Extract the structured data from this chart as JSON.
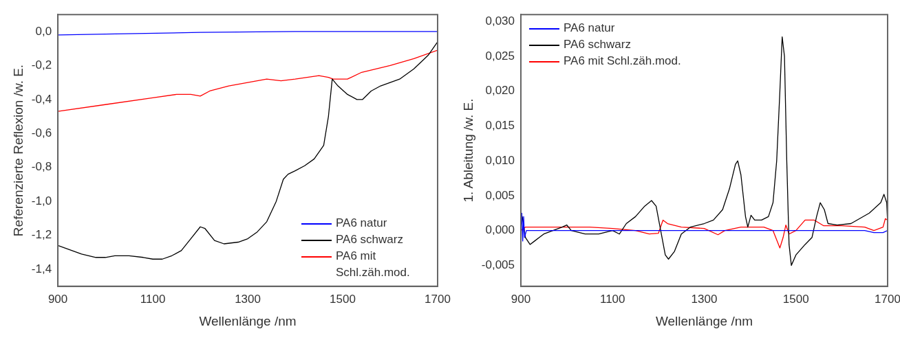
{
  "chart_data": [
    {
      "type": "line",
      "xlabel": "Wellenlänge /nm",
      "ylabel": "Referenzierte Reflexion /w. E.",
      "xlim": [
        900,
        1700
      ],
      "xticks": [
        900,
        1100,
        1300,
        1500,
        1700
      ],
      "ylim": [
        -1.5,
        0.1
      ],
      "yticks": [
        {
          "value": 0,
          "label": "0,0"
        },
        {
          "value": -0.2,
          "label": "-0,2"
        },
        {
          "value": -0.4,
          "label": "-0,4"
        },
        {
          "value": -0.6,
          "label": "-0,6"
        },
        {
          "value": -0.8,
          "label": "-0,8"
        },
        {
          "value": -1.0,
          "label": "-1,0"
        },
        {
          "value": -1.2,
          "label": "-1,2"
        },
        {
          "value": -1.4,
          "label": "-1,4"
        }
      ],
      "grid": false,
      "legend": "bottom right",
      "series": [
        {
          "name": "PA6 natur",
          "color": "#0000ff",
          "x": [
            900,
            903,
            1000,
            1200,
            1400,
            1700
          ],
          "values": [
            -0.02,
            -0.02,
            -0.015,
            -0.005,
            0.0,
            0.0
          ]
        },
        {
          "name": "PA6 schwarz",
          "color": "#000000",
          "x": [
            900,
            920,
            950,
            980,
            1000,
            1020,
            1050,
            1080,
            1100,
            1120,
            1140,
            1160,
            1180,
            1200,
            1210,
            1230,
            1250,
            1280,
            1300,
            1320,
            1340,
            1360,
            1375,
            1385,
            1400,
            1420,
            1440,
            1460,
            1470,
            1478,
            1490,
            1510,
            1530,
            1542,
            1560,
            1580,
            1600,
            1620,
            1650,
            1680,
            1700
          ],
          "values": [
            -1.26,
            -1.28,
            -1.31,
            -1.33,
            -1.33,
            -1.32,
            -1.32,
            -1.33,
            -1.34,
            -1.34,
            -1.32,
            -1.29,
            -1.22,
            -1.15,
            -1.16,
            -1.23,
            -1.25,
            -1.24,
            -1.22,
            -1.18,
            -1.12,
            -1.0,
            -0.87,
            -0.84,
            -0.82,
            -0.79,
            -0.75,
            -0.67,
            -0.5,
            -0.28,
            -0.32,
            -0.37,
            -0.4,
            -0.4,
            -0.35,
            -0.32,
            -0.3,
            -0.28,
            -0.22,
            -0.14,
            -0.06
          ]
        },
        {
          "name": "PA6 mit Schl.zäh.mod.",
          "color": "#ff0000",
          "x": [
            900,
            1000,
            1100,
            1150,
            1180,
            1200,
            1220,
            1260,
            1300,
            1340,
            1370,
            1400,
            1450,
            1470,
            1480,
            1510,
            1540,
            1600,
            1650,
            1700
          ],
          "values": [
            -0.47,
            -0.43,
            -0.39,
            -0.37,
            -0.37,
            -0.38,
            -0.35,
            -0.32,
            -0.3,
            -0.28,
            -0.29,
            -0.28,
            -0.26,
            -0.27,
            -0.28,
            -0.28,
            -0.24,
            -0.2,
            -0.16,
            -0.11
          ]
        }
      ]
    },
    {
      "type": "line",
      "xlabel": "Wellenlänge /nm",
      "ylabel": "1. Ableitung /w. E.",
      "xlim": [
        900,
        1700
      ],
      "xticks": [
        900,
        1100,
        1300,
        1500,
        1700
      ],
      "ylim": [
        -0.008,
        0.031
      ],
      "yticks": [
        {
          "value": -0.005,
          "label": "-0,005"
        },
        {
          "value": 0,
          "label": "0,000"
        },
        {
          "value": 0.005,
          "label": "0,005"
        },
        {
          "value": 0.01,
          "label": "0,010"
        },
        {
          "value": 0.015,
          "label": "0,015"
        },
        {
          "value": 0.02,
          "label": "0,020"
        },
        {
          "value": 0.025,
          "label": "0,025"
        },
        {
          "value": 0.03,
          "label": "0,030"
        }
      ],
      "grid": false,
      "legend": "top left",
      "series": [
        {
          "name": "PA6 natur",
          "color": "#0000ff",
          "x": [
            900,
            902,
            904,
            906,
            908,
            912,
            1300,
            1650,
            1670,
            1690,
            1700
          ],
          "values": [
            0.0,
            0.0025,
            -0.0015,
            0.002,
            -0.001,
            0.0,
            0.0,
            0.0,
            -0.0003,
            -0.0003,
            0.0
          ]
        },
        {
          "name": "PA6 schwarz",
          "color": "#000000",
          "x": [
            900,
            903,
            910,
            920,
            930,
            940,
            950,
            970,
            990,
            1000,
            1010,
            1040,
            1070,
            1100,
            1115,
            1130,
            1150,
            1170,
            1185,
            1195,
            1205,
            1215,
            1222,
            1235,
            1250,
            1270,
            1300,
            1320,
            1340,
            1355,
            1368,
            1373,
            1380,
            1390,
            1395,
            1402,
            1410,
            1425,
            1440,
            1450,
            1458,
            1465,
            1470,
            1475,
            1480,
            1485,
            1490,
            1500,
            1520,
            1535,
            1545,
            1553,
            1562,
            1570,
            1590,
            1620,
            1660,
            1685,
            1692,
            1698,
            1700
          ],
          "values": [
            0.001,
            0.002,
            -0.001,
            -0.002,
            -0.0015,
            -0.001,
            -0.0005,
            0.0,
            0.0005,
            0.0008,
            0.0,
            -0.0005,
            -0.0005,
            0.0,
            -0.0005,
            0.001,
            0.002,
            0.0035,
            0.0043,
            0.0035,
            0.0,
            -0.0035,
            -0.0041,
            -0.003,
            -0.0005,
            0.0005,
            0.001,
            0.0015,
            0.003,
            0.006,
            0.0095,
            0.01,
            0.008,
            0.002,
            0.0005,
            0.0022,
            0.0015,
            0.0015,
            0.002,
            0.004,
            0.01,
            0.02,
            0.0278,
            0.025,
            0.01,
            -0.002,
            -0.005,
            -0.0035,
            -0.002,
            -0.001,
            0.002,
            0.004,
            0.003,
            0.001,
            0.0008,
            0.001,
            0.0025,
            0.004,
            0.0052,
            0.004,
            0.001
          ]
        },
        {
          "name": "PA6 mit Schl.zäh.mod.",
          "color": "#ff0000",
          "x": [
            900,
            910,
            1000,
            1050,
            1100,
            1150,
            1180,
            1200,
            1210,
            1220,
            1250,
            1300,
            1330,
            1345,
            1380,
            1400,
            1430,
            1450,
            1465,
            1472,
            1478,
            1485,
            1500,
            1520,
            1540,
            1560,
            1600,
            1650,
            1670,
            1690,
            1695,
            1700
          ],
          "values": [
            0.0,
            0.0005,
            0.0005,
            0.0005,
            0.0003,
            0.0,
            -0.0005,
            -0.0004,
            0.0015,
            0.001,
            0.0005,
            0.0003,
            -0.0006,
            0.0,
            0.0005,
            0.0005,
            0.0005,
            0.0,
            -0.0025,
            -0.001,
            0.0008,
            -0.0005,
            0.0,
            0.0015,
            0.0015,
            0.0007,
            0.0007,
            0.0005,
            0.0,
            0.0005,
            0.0017,
            0.0015
          ]
        }
      ]
    }
  ]
}
